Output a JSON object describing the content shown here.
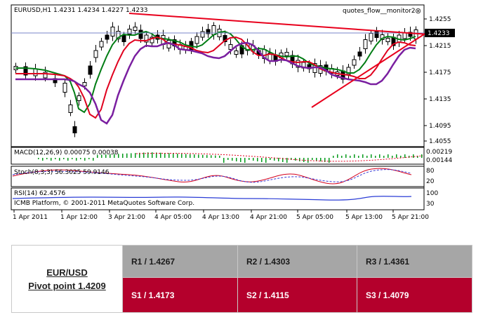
{
  "chart": {
    "symbol_line": "EURUSD,H1  1.4231 1.4234 1.4227 1.4233",
    "indicator_name": "quotes_flow__monitor2",
    "close_glyph": "⊗",
    "current_price": "1.4233",
    "price_labels": [
      "1.4255",
      "1.4215",
      "1.4175",
      "1.4135",
      "1.4095",
      "1.4055"
    ],
    "time_labels": [
      "1 Apr 2011",
      "1 Apr 12:00",
      "3 Apr 21:00",
      "4 Apr 05:00",
      "4 Apr 13:00",
      "4 Apr 21:00",
      "5 Apr 05:00",
      "5 Apr 13:00",
      "5 Apr 21:00"
    ],
    "macd_label": "MACD(12,26,9) 0.00075 0.00038",
    "macd_scale": [
      "0.00219",
      "0.00144"
    ],
    "stoch_label": "Stoch(8,3,3) 56.3025 59.9146",
    "stoch_scale": [
      "80",
      "20"
    ],
    "rsi_label": "RSI(14) 62.4576",
    "rsi_scale": [
      "100",
      "30"
    ],
    "copyright": "ICMB Platform, © 2001-2011 MetaQuotes Software Corp.",
    "colors": {
      "ma_fast": "#007d14",
      "ma_mid": "#e0001e",
      "ma_slow": "#7a1fa0",
      "trendline": "#e8001c",
      "macd_bar": "#009a1a",
      "stoch_main": "#d4001c",
      "stoch_signal": "#3b3bd6",
      "rsi": "#2a3cd6"
    }
  },
  "pivot": {
    "pair": "EUR/USD",
    "pivot_point": "Pivot point 1.4209",
    "resistances": [
      "R1 / 1.4267",
      "R2 / 1.4303",
      "R3 / 1.4361"
    ],
    "supports": [
      "S1 / 1.4173",
      "S2 / 1.4115",
      "S3 / 1.4079"
    ]
  }
}
